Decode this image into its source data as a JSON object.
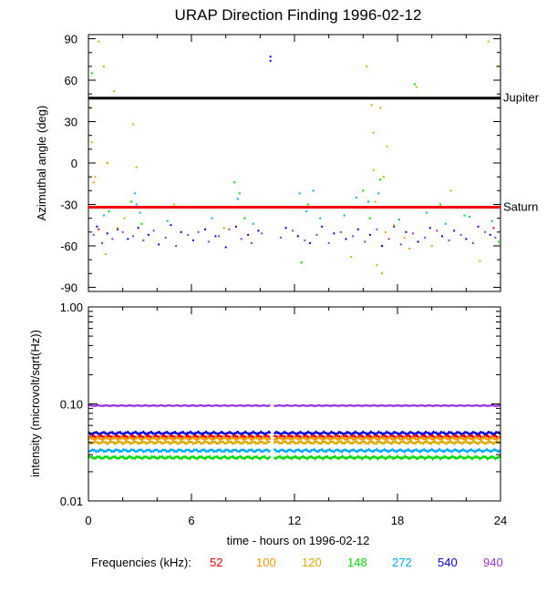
{
  "title": "URAP Direction Finding  1996-02-12",
  "frequencies_caption": "Frequencies (kHz):",
  "frequencies": [
    {
      "label": "52",
      "color": "#ee0000"
    },
    {
      "label": "100",
      "color": "#ff9900"
    },
    {
      "label": "120",
      "color": "#ddaa00"
    },
    {
      "label": "148",
      "color": "#00dd00"
    },
    {
      "label": "272",
      "color": "#00aaff"
    },
    {
      "label": "540",
      "color": "#0000dd"
    },
    {
      "label": "940",
      "color": "#9933dd"
    }
  ],
  "chart_data": [
    {
      "type": "scatter",
      "title": "URAP Direction Finding  1996-02-12",
      "ylabel": "Azimuthal angle (deg)",
      "xlim": [
        0,
        24
      ],
      "ylim": [
        -93,
        93
      ],
      "yticks": [
        "90",
        "60",
        "30",
        "0",
        "-30",
        "-60",
        "-90"
      ],
      "reference_lines": [
        {
          "label": "Jupiter",
          "y": 47,
          "color": "#000000"
        },
        {
          "label": "Saturn",
          "y": -32,
          "color": "#ee0000"
        }
      ],
      "series": [
        {
          "name": "940",
          "color": "#9933dd",
          "points": [
            [
              0.3,
              -52
            ],
            [
              0.8,
              -58
            ],
            [
              1.4,
              -55
            ],
            [
              2.0,
              -50
            ],
            [
              2.6,
              -53
            ],
            [
              3.2,
              -56
            ],
            [
              3.8,
              -49
            ],
            [
              4.5,
              -54
            ],
            [
              5.1,
              -60
            ],
            [
              5.8,
              -52
            ],
            [
              6.4,
              -50
            ],
            [
              7.0,
              -57
            ],
            [
              7.6,
              -53
            ],
            [
              8.2,
              -48
            ],
            [
              8.9,
              -55
            ],
            [
              9.5,
              -58
            ],
            [
              10.1,
              -51
            ],
            [
              11.2,
              -54
            ],
            [
              11.9,
              -49
            ],
            [
              12.6,
              -56
            ],
            [
              13.3,
              -52
            ],
            [
              14.0,
              -58
            ],
            [
              14.7,
              -50
            ],
            [
              15.4,
              -53
            ],
            [
              16.1,
              -57
            ],
            [
              16.8,
              -48
            ],
            [
              17.5,
              -55
            ],
            [
              18.2,
              -59
            ],
            [
              18.9,
              -51
            ],
            [
              19.6,
              -54
            ],
            [
              20.3,
              -49
            ],
            [
              21.0,
              -56
            ],
            [
              21.7,
              -52
            ],
            [
              22.4,
              -58
            ],
            [
              23.1,
              -50
            ],
            [
              23.7,
              -54
            ]
          ]
        },
        {
          "name": "540",
          "color": "#0000dd",
          "points": [
            [
              0.5,
              -46
            ],
            [
              1.1,
              -51
            ],
            [
              1.7,
              -48
            ],
            [
              2.3,
              -55
            ],
            [
              2.9,
              -47
            ],
            [
              3.5,
              -52
            ],
            [
              4.1,
              -59
            ],
            [
              4.8,
              -45
            ],
            [
              5.4,
              -50
            ],
            [
              6.1,
              -56
            ],
            [
              6.8,
              -48
            ],
            [
              7.4,
              -53
            ],
            [
              8.0,
              -61
            ],
            [
              8.6,
              -46
            ],
            [
              9.3,
              -52
            ],
            [
              9.9,
              -49
            ],
            [
              10.6,
              77
            ],
            [
              10.6,
              74
            ],
            [
              11.5,
              -47
            ],
            [
              12.2,
              -53
            ],
            [
              12.9,
              -58
            ],
            [
              13.6,
              -46
            ],
            [
              14.3,
              -51
            ],
            [
              15.0,
              -55
            ],
            [
              15.7,
              -48
            ],
            [
              16.4,
              -52
            ],
            [
              17.1,
              -60
            ],
            [
              17.8,
              -46
            ],
            [
              18.5,
              -50
            ],
            [
              19.2,
              -57
            ],
            [
              19.9,
              -47
            ],
            [
              20.6,
              -53
            ],
            [
              21.3,
              -49
            ],
            [
              22.0,
              -55
            ],
            [
              22.7,
              -46
            ],
            [
              23.4,
              -52
            ]
          ]
        },
        {
          "name": "272",
          "color": "#00aaff",
          "points": [
            [
              0.9,
              -38
            ],
            [
              2.7,
              -22
            ],
            [
              2.8,
              -30
            ],
            [
              3.0,
              -36
            ],
            [
              4.6,
              -42
            ],
            [
              7.2,
              -40
            ],
            [
              8.7,
              -26
            ],
            [
              9.6,
              -44
            ],
            [
              12.3,
              -22
            ],
            [
              12.7,
              -35
            ],
            [
              13.1,
              -20
            ],
            [
              13.5,
              -40
            ],
            [
              14.9,
              -38
            ],
            [
              15.6,
              -25
            ],
            [
              16.3,
              -28
            ],
            [
              16.5,
              -32
            ],
            [
              16.9,
              -22
            ],
            [
              18.1,
              -41
            ],
            [
              19.7,
              -36
            ],
            [
              20.8,
              -44
            ],
            [
              22.2,
              -39
            ],
            [
              23.5,
              -42
            ]
          ]
        },
        {
          "name": "148",
          "color": "#00dd00",
          "points": [
            [
              0.2,
              65
            ],
            [
              1.2,
              -35
            ],
            [
              2.5,
              -28
            ],
            [
              3.1,
              -44
            ],
            [
              8.5,
              -14
            ],
            [
              8.8,
              -22
            ],
            [
              9.1,
              -40
            ],
            [
              12.4,
              -72
            ],
            [
              12.8,
              -30
            ],
            [
              16.0,
              -20
            ],
            [
              16.4,
              -40
            ],
            [
              17.0,
              -12
            ],
            [
              19.0,
              57
            ],
            [
              20.5,
              -30
            ],
            [
              21.9,
              -38
            ],
            [
              23.9,
              -57
            ]
          ]
        },
        {
          "name": "120",
          "color": "#ddaa00",
          "points": [
            [
              0.1,
              40
            ],
            [
              0.2,
              15
            ],
            [
              0.4,
              -10
            ],
            [
              0.6,
              88
            ],
            [
              0.9,
              70
            ],
            [
              1.0,
              -66
            ],
            [
              1.1,
              0
            ],
            [
              1.5,
              52
            ],
            [
              2.1,
              -40
            ],
            [
              2.6,
              28
            ],
            [
              2.8,
              -3
            ],
            [
              5.0,
              -30
            ],
            [
              7.9,
              -47
            ],
            [
              15.3,
              -68
            ],
            [
              16.2,
              70
            ],
            [
              16.5,
              42
            ],
            [
              16.6,
              -5
            ],
            [
              16.7,
              -28
            ],
            [
              16.8,
              -74
            ],
            [
              17.0,
              40
            ],
            [
              17.1,
              -80
            ],
            [
              17.2,
              -10
            ],
            [
              17.4,
              12
            ],
            [
              17.8,
              -45
            ],
            [
              18.4,
              -54
            ],
            [
              19.1,
              55
            ],
            [
              20.0,
              -60
            ],
            [
              21.1,
              -20
            ],
            [
              22.8,
              -71
            ],
            [
              23.3,
              88
            ],
            [
              23.8,
              70
            ]
          ]
        },
        {
          "name": "100",
          "color": "#ff9900",
          "points": [
            [
              0.3,
              -14
            ],
            [
              1.7,
              -47
            ],
            [
              16.6,
              22
            ],
            [
              17.3,
              -50
            ],
            [
              18.7,
              -62
            ]
          ]
        },
        {
          "name": "52",
          "color": "#ee0000",
          "points": [
            [
              0.6,
              -48
            ],
            [
              23.6,
              -47
            ]
          ]
        }
      ]
    },
    {
      "type": "line",
      "xlabel": "time - hours on 1996-02-12",
      "ylabel": "intensity (microvolt/sqrt(Hz))",
      "xlim": [
        0,
        24
      ],
      "ylim": [
        0.01,
        1.0
      ],
      "yscale": "log",
      "xticks": [
        "0",
        "6",
        "12",
        "18",
        "24"
      ],
      "yticks": [
        "1.00",
        "0.10",
        "0.01"
      ],
      "gap_hours": [
        10.6,
        10.8
      ],
      "series": [
        {
          "name": "940",
          "color": "#9933dd",
          "level": 0.096
        },
        {
          "name": "540",
          "color": "#0000dd",
          "level": 0.05
        },
        {
          "name": "52",
          "color": "#ee0000",
          "level": 0.046
        },
        {
          "name": "100",
          "color": "#ff9900",
          "level": 0.044
        },
        {
          "name": "120",
          "color": "#ddaa00",
          "level": 0.04
        },
        {
          "name": "272",
          "color": "#00aaff",
          "level": 0.033
        },
        {
          "name": "148",
          "color": "#00dd00",
          "level": 0.028
        }
      ]
    }
  ]
}
